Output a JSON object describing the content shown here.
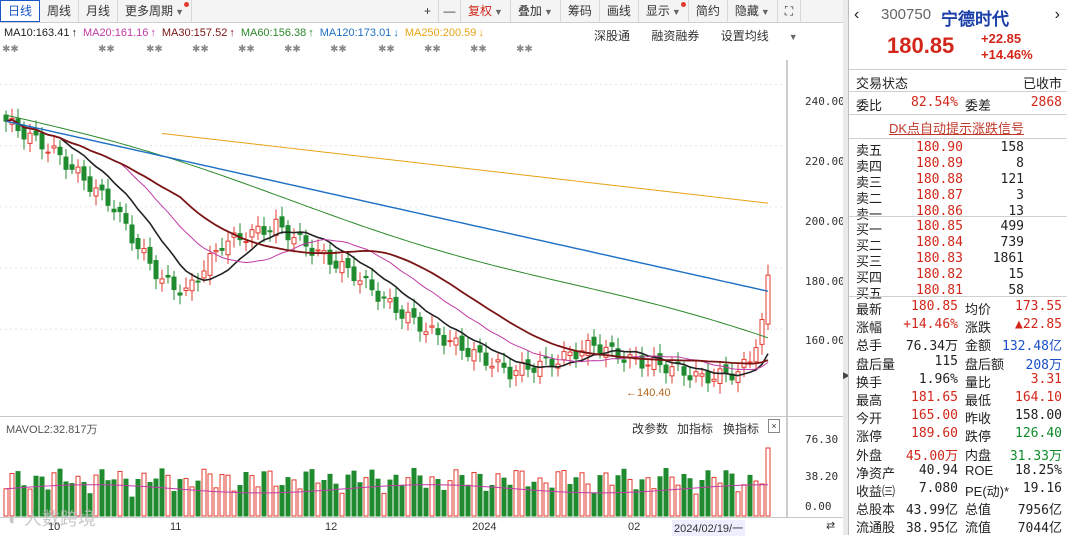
{
  "toolbar": {
    "items": [
      "日线",
      "周线",
      "月线",
      "更多周期",
      "+",
      "—",
      "复权",
      "叠加",
      "筹码",
      "画线",
      "显示",
      "简约",
      "隐藏",
      "⛶"
    ]
  },
  "ma_legend": {
    "ma10": "MA10:163.41",
    "ma20": "MA20:161.16",
    "ma30": "MA30:157.52",
    "ma60": "MA60:156.38",
    "ma120": "MA120:173.01",
    "ma250": "MA250:200.59"
  },
  "chart_links": {
    "shenzhen": "深股通",
    "margin": "融资融券",
    "settings": "设置均线"
  },
  "colors": {
    "up": "#e33b2f",
    "down": "#1f8a2e",
    "ma10": "#222222",
    "ma20": "#c03aa6",
    "ma30": "#7a1414",
    "ma60": "#2c8a2c",
    "ma120": "#1c6fc4",
    "ma250": "#e8a317"
  },
  "price_axis": [
    "240.00",
    "220.00",
    "200.00",
    "180.00",
    "160.00"
  ],
  "low_marker": "140.40",
  "vol": {
    "label": "MAVOL2:32.817万",
    "tabs": [
      "改参数",
      "加指标",
      "换指标"
    ],
    "axis": [
      "76.30",
      "38.20",
      "0.00"
    ]
  },
  "date_axis": [
    "10",
    "11",
    "12",
    "2024",
    "02",
    "2024/02/19/一"
  ],
  "watermark": "人数跨境",
  "stock": {
    "code": "300750",
    "name": "宁德时代",
    "price": "180.85",
    "change": "+22.85",
    "pct": "+14.46%"
  },
  "status": {
    "label": "交易状态",
    "value": "已收市"
  },
  "ratio": {
    "wb_label": "委比",
    "wb_value": "82.54%",
    "wc_label": "委差",
    "wc_value": "2868"
  },
  "signal": "DK点自动提示涨跌信号",
  "asks": [
    {
      "label": "卖五",
      "price": "180.90",
      "vol": "158"
    },
    {
      "label": "卖四",
      "price": "180.89",
      "vol": "8"
    },
    {
      "label": "卖三",
      "price": "180.88",
      "vol": "121"
    },
    {
      "label": "卖二",
      "price": "180.87",
      "vol": "3"
    },
    {
      "label": "卖一",
      "price": "180.86",
      "vol": "13"
    }
  ],
  "bids": [
    {
      "label": "买一",
      "price": "180.85",
      "vol": "499"
    },
    {
      "label": "买二",
      "price": "180.84",
      "vol": "739"
    },
    {
      "label": "买三",
      "price": "180.83",
      "vol": "1861"
    },
    {
      "label": "买四",
      "price": "180.82",
      "vol": "15"
    },
    {
      "label": "买五",
      "price": "180.81",
      "vol": "58"
    }
  ],
  "stats": [
    {
      "l1": "最新",
      "v1": "180.85",
      "c1": "red",
      "l2": "均价",
      "v2": "173.55",
      "c2": "red"
    },
    {
      "l1": "涨幅",
      "v1": "+14.46%",
      "c1": "red",
      "l2": "涨跌",
      "v2": "▲22.85",
      "c2": "red"
    },
    {
      "l1": "总手",
      "v1": "76.34万",
      "c1": "",
      "l2": "金额",
      "v2": "132.48亿",
      "c2": "blue"
    },
    {
      "l1": "盘后量",
      "v1": "115",
      "c1": "",
      "l2": "盘后额",
      "v2": "208万",
      "c2": "blue"
    },
    {
      "l1": "换手",
      "v1": "1.96%",
      "c1": "",
      "l2": "量比",
      "v2": "3.31",
      "c2": "red"
    },
    {
      "l1": "最高",
      "v1": "181.65",
      "c1": "red",
      "l2": "最低",
      "v2": "164.10",
      "c2": "red"
    },
    {
      "l1": "今开",
      "v1": "165.00",
      "c1": "red",
      "l2": "昨收",
      "v2": "158.00",
      "c2": ""
    },
    {
      "l1": "涨停",
      "v1": "189.60",
      "c1": "red",
      "l2": "跌停",
      "v2": "126.40",
      "c2": "green"
    },
    {
      "l1": "外盘",
      "v1": "45.00万",
      "c1": "red",
      "l2": "内盘",
      "v2": "31.33万",
      "c2": "green"
    },
    {
      "l1": "净资产",
      "v1": "40.94",
      "c1": "",
      "l2": "ROE",
      "v2": "18.25%",
      "c2": ""
    },
    {
      "l1": "收益㈢",
      "v1": "7.080",
      "c1": "",
      "l2": "PE(动)*",
      "v2": "19.16",
      "c2": ""
    },
    {
      "l1": "总股本",
      "v1": "43.99亿",
      "c1": "",
      "l2": "总值",
      "v2": "7956亿",
      "c2": ""
    },
    {
      "l1": "流通股",
      "v1": "38.95亿",
      "c1": "",
      "l2": "流值",
      "v2": "7044亿",
      "c2": ""
    }
  ]
}
